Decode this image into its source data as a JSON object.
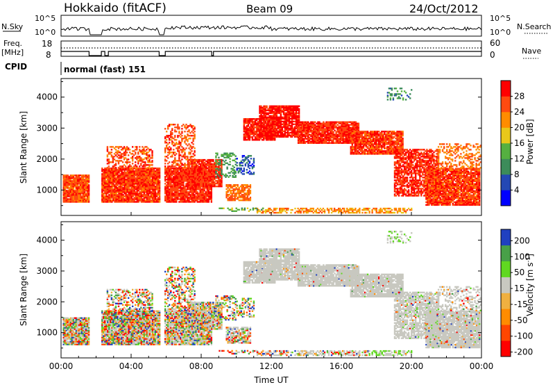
{
  "header": {
    "station": "Hokkaido (fitACF)",
    "beam": "Beam 09",
    "date": "24/Oct/2012"
  },
  "nsky_panel": {
    "label": "N.Sky",
    "right_label": "N.Search",
    "tick_top": "10^5",
    "tick_bottom": "10^0",
    "tick_top_right": "10^5",
    "tick_bottom_right": "10^0"
  },
  "freq_panel": {
    "label_line1": "Freq.",
    "label_line2": "[MHz]",
    "tick_top": "18",
    "tick_bottom": "8",
    "right_label": "Nave",
    "tick_top_right": "60",
    "tick_bottom_right": "0"
  },
  "cpid_panel": {
    "label": "CPID",
    "text": "normal (fast) 151"
  },
  "colors": {
    "power": [
      "#0000ff",
      "#2448b4",
      "#3c8c5a",
      "#55b040",
      "#e8c81a",
      "#ff8c00",
      "#ff4a10",
      "#ff0000"
    ],
    "velocity": [
      "#ff0000",
      "#ff4600",
      "#ff8c00",
      "#f0b040",
      "#c8c8c0",
      "#60d820",
      "#48a048",
      "#2040c0"
    ],
    "outline": "#000000"
  },
  "chart_data": [
    {
      "type": "heatmap",
      "name": "power",
      "ylabel": "Slant Range [km]",
      "yticks": [
        "1000",
        "2000",
        "3000",
        "4000"
      ],
      "ylim": [
        180,
        4600
      ],
      "colorbar": {
        "label": "Power [dB]",
        "ticks": [
          "4",
          "8",
          "12",
          "16",
          "20",
          "24",
          "28"
        ],
        "range": [
          0,
          32
        ]
      }
    },
    {
      "type": "heatmap",
      "name": "velocity",
      "ylabel": "Slant Range [km]",
      "yticks": [
        "1000",
        "2000",
        "3000",
        "4000"
      ],
      "ylim": [
        180,
        4600
      ],
      "xlabel": "Time UT",
      "xticks": [
        "00:00",
        "04:00",
        "08:00",
        "12:00",
        "16:00",
        "20:00",
        "00:00"
      ],
      "xlim_hours": [
        0,
        24
      ],
      "colorbar": {
        "label": "Velocity [m s^-1]",
        "ticks": [
          "200",
          "100",
          "50",
          "15",
          "-15",
          "-50",
          "-100",
          "-200"
        ]
      }
    }
  ]
}
